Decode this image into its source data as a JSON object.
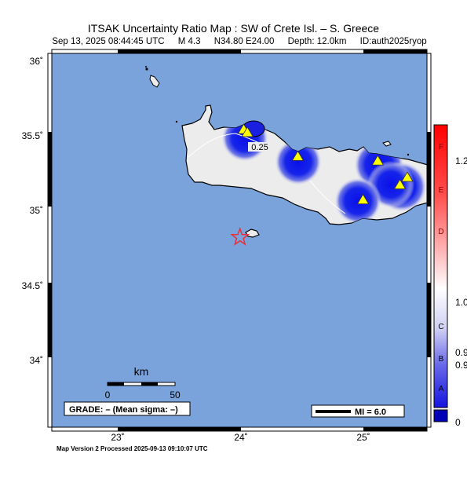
{
  "header": {
    "title": "ITSAK Uncertainty Ratio Map : SW of Crete Isl. – S. Greece",
    "date": "Sep 13, 2025 08:44:45 UTC",
    "magnitude": "M 4.3",
    "location": "N34.80 E24.00",
    "depth": "Depth: 12.0km",
    "event_id": "ID:auth2025ryop"
  },
  "axes": {
    "lat_labels": [
      "36˚",
      "35.5˚",
      "35˚",
      "34.5˚",
      "34˚"
    ],
    "lon_labels": [
      "23˚",
      "24˚",
      "25˚"
    ]
  },
  "map": {
    "colors": {
      "ocean": "#7aa3dc",
      "land": "#ececec",
      "station": "#ffff00",
      "epicenter": "#e8303a",
      "uncertainty_low": "#1020e0"
    },
    "contour_label": "0.25",
    "stations": [
      {
        "name": "station-1",
        "lat": 35.52,
        "lon": 24.03
      },
      {
        "name": "station-2",
        "lat": 35.5,
        "lon": 24.06
      },
      {
        "name": "station-3",
        "lat": 35.34,
        "lon": 24.47
      },
      {
        "name": "station-4",
        "lat": 35.31,
        "lon": 25.12
      },
      {
        "name": "station-5",
        "lat": 35.2,
        "lon": 25.36
      },
      {
        "name": "station-6",
        "lat": 35.15,
        "lon": 25.3
      },
      {
        "name": "station-7",
        "lat": 35.05,
        "lon": 25.0
      }
    ],
    "epicenter": {
      "lat": 34.8,
      "lon": 24.0
    }
  },
  "scale_bar": {
    "unit": "km",
    "start": "0",
    "end": "50"
  },
  "grade_box": "GRADE: – (Mean sigma: –)",
  "mi_box": "MI = 6.0",
  "colorbar": {
    "letters": [
      "F",
      "E",
      "D",
      "C",
      "B",
      "A"
    ],
    "values": [
      "1.2",
      "1.0",
      "0.9",
      "0.9",
      "0"
    ],
    "colors": [
      "#ff0000",
      "#ff6666",
      "#ffcccc",
      "#ffffff",
      "#c8c8f0",
      "#6666e8",
      "#1a1ae6",
      "#0000b4"
    ]
  },
  "footer": "Map Version 2 Processed 2025-09-13 09:10:07 UTC"
}
